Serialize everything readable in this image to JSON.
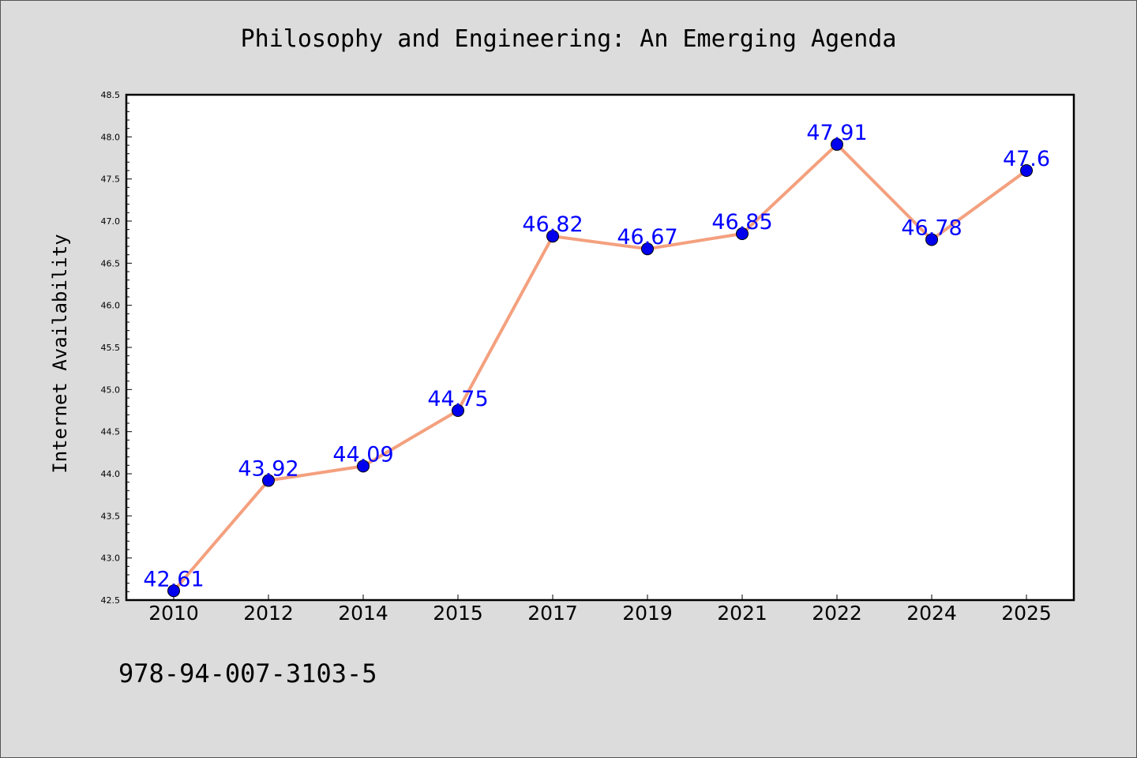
{
  "chart_data": {
    "type": "line",
    "title": "Philosophy and Engineering: An Emerging Agenda",
    "xlabel": "",
    "ylabel": "Internet Availability",
    "categories": [
      "2010",
      "2012",
      "2014",
      "2015",
      "2017",
      "2019",
      "2021",
      "2022",
      "2024",
      "2025"
    ],
    "values": [
      42.61,
      43.92,
      44.09,
      44.75,
      46.82,
      46.67,
      46.85,
      47.91,
      46.78,
      47.6
    ],
    "data_labels": [
      "42.61",
      "43.92",
      "44.09",
      "44.75",
      "46.82",
      "46.67",
      "46.85",
      "47.91",
      "46.78",
      "47.6"
    ],
    "ylim": [
      42.5,
      48.5
    ],
    "yticks": [
      "42.5",
      "43.0",
      "43.5",
      "44.0",
      "44.5",
      "45.0",
      "45.5",
      "46.0",
      "46.5",
      "47.0",
      "47.5",
      "48.0",
      "48.5"
    ],
    "grid": false,
    "colors": {
      "line": "#f4a07e",
      "marker": "#0000ee",
      "label": "#0000ff"
    }
  },
  "footer": {
    "code": "978-94-007-3103-5"
  }
}
